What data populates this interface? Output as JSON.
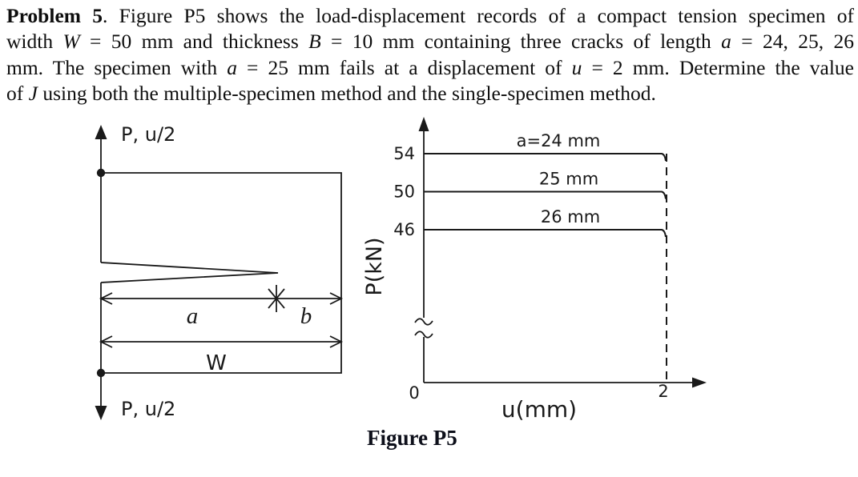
{
  "problem": {
    "lines": [
      [
        {
          "text": "Problem 5",
          "bold": true
        },
        {
          "text": ". Figure P5 shows the load-displacement records of a compact tension specimen of"
        }
      ],
      [
        {
          "text": "width "
        },
        {
          "text": "W",
          "italic": true
        },
        {
          "text": " = 50 mm and thickness "
        },
        {
          "text": "B",
          "italic": true
        },
        {
          "text": " = 10 mm containing three cracks of length "
        },
        {
          "text": "a",
          "italic": true
        },
        {
          "text": " = 24, 25, 26"
        }
      ],
      [
        {
          "text": "mm. The specimen with "
        },
        {
          "text": "a",
          "italic": true
        },
        {
          "text": " = 25 mm fails at a displacement of "
        },
        {
          "text": "u",
          "italic": true
        },
        {
          "text": " = 2 mm. Determine the value"
        }
      ],
      [
        {
          "text": "of "
        },
        {
          "text": "J",
          "italic": true
        },
        {
          "text": " using both the multiple-specimen method and the single-specimen method."
        }
      ]
    ]
  },
  "specimen_diagram": {
    "top_load_label": "P, u/2",
    "bottom_load_label": "P, u/2",
    "crack_length_label": "a",
    "ligament_label": "b",
    "width_label": "W"
  },
  "chart_data": {
    "type": "line",
    "title": "",
    "xlabel": "u(mm)",
    "ylabel": "P(kN)",
    "x_ticks": [
      "0",
      "2"
    ],
    "y_ticks": [
      54,
      50,
      46
    ],
    "xlim": [
      0,
      2.3
    ],
    "y_axis_break": true,
    "grid": false,
    "legend_position": "labels above each line",
    "series": [
      {
        "name": "a=24 mm",
        "x": [
          0,
          2
        ],
        "y": [
          54,
          54
        ]
      },
      {
        "name": "25 mm",
        "x": [
          0,
          2
        ],
        "y": [
          50,
          50
        ]
      },
      {
        "name": "26 mm",
        "x": [
          0,
          2
        ],
        "y": [
          46,
          46
        ]
      }
    ],
    "annotations": {
      "failure_line": "dashed vertical line at u = 2 mm",
      "load_drop": "each record drops at u = 2 mm"
    }
  },
  "caption": "Figure P5",
  "colors": {
    "ink": "#1a1a1a",
    "background": "#ffffff"
  }
}
